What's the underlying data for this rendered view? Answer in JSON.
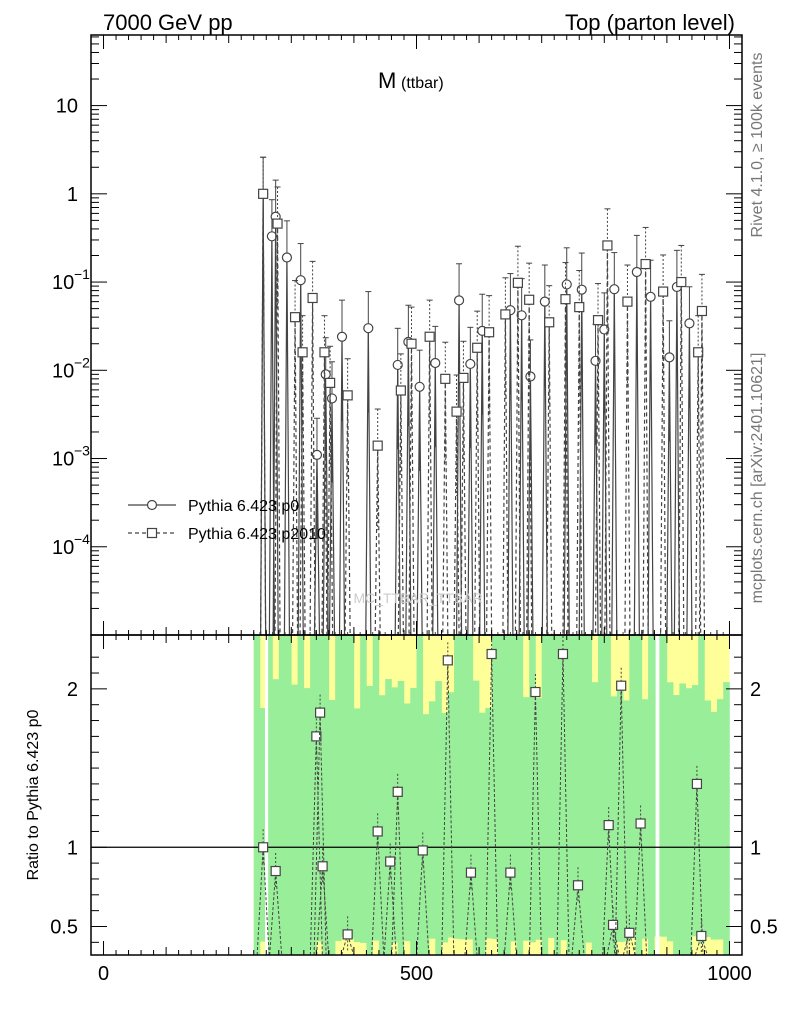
{
  "header": {
    "left": "7000 GeV pp",
    "right": "Top (parton level)"
  },
  "side_labels": {
    "rivet": "Rivet 4.1.0, ≥ 100k events",
    "mcplots": "mcplots.cern.ch [arXiv:2401.10621]"
  },
  "watermark": "MC_TTBAR_TTBAR",
  "chart_data": {
    "type": "line",
    "title_main": "M",
    "title_sub": "(ttbar)",
    "xlabel": "",
    "ylabel_main": "",
    "ylabel_ratio": "Ratio to Pythia 6.423 p0",
    "xlim": [
      -20,
      1020
    ],
    "ylim_main_log10": [
      -5.0,
      1.8
    ],
    "ylim_ratio": [
      0.32,
      2.34
    ],
    "yscale_main": "log",
    "grid": false,
    "legend_position": "lower-left",
    "x_ticks": [
      "0",
      "500",
      "1000"
    ],
    "y_ticks_main": [
      {
        "value": 0.0001,
        "mantissa": "10",
        "exponent": "−4"
      },
      {
        "value": 0.001,
        "mantissa": "10",
        "exponent": "−3"
      },
      {
        "value": 0.01,
        "mantissa": "10",
        "exponent": "−2"
      },
      {
        "value": 0.1,
        "mantissa": "10",
        "exponent": "−1"
      },
      {
        "value": 1,
        "mantissa": "1",
        "exponent": ""
      },
      {
        "value": 10,
        "mantissa": "10",
        "exponent": ""
      }
    ],
    "y_ticks_ratio": [
      "0.5",
      "1",
      "2"
    ],
    "series": [
      {
        "name": "Pythia 6.423 p0",
        "marker": "circle",
        "linestyle": "solid",
        "points": [
          [
            255,
            1.0
          ],
          [
            269,
            0.33
          ],
          [
            275,
            0.55
          ],
          [
            293,
            0.19
          ],
          [
            315,
            0.105
          ],
          [
            341,
            0.0011
          ],
          [
            355,
            0.009
          ],
          [
            365,
            0.0048
          ],
          [
            381,
            0.024
          ],
          [
            423,
            0.03
          ],
          [
            470,
            0.0115
          ],
          [
            487,
            0.021
          ],
          [
            505,
            0.0065
          ],
          [
            530,
            0.0121
          ],
          [
            568,
            0.062
          ],
          [
            586,
            0.0118
          ],
          [
            605,
            0.028
          ],
          [
            650,
            0.048
          ],
          [
            668,
            0.042
          ],
          [
            682,
            0.0085
          ],
          [
            705,
            0.06
          ],
          [
            740,
            0.094
          ],
          [
            764,
            0.082
          ],
          [
            786,
            0.0128
          ],
          [
            800,
            0.029
          ],
          [
            816,
            0.083
          ],
          [
            852,
            0.13
          ],
          [
            874,
            0.068
          ],
          [
            904,
            0.014
          ],
          [
            916,
            0.088
          ],
          [
            936,
            0.034
          ]
        ]
      },
      {
        "name": "Pythia 6.423 p2010",
        "marker": "square",
        "linestyle": "dashed",
        "points": [
          [
            255,
            1.0
          ],
          [
            278,
            0.46
          ],
          [
            306,
            0.04
          ],
          [
            318,
            0.016
          ],
          [
            334,
            0.066
          ],
          [
            353,
            0.016
          ],
          [
            362,
            0.0072
          ],
          [
            390,
            0.0052
          ],
          [
            438,
            0.0014
          ],
          [
            475,
            0.0059
          ],
          [
            492,
            0.02
          ],
          [
            521,
            0.024
          ],
          [
            546,
            0.008
          ],
          [
            564,
            0.0034
          ],
          [
            575,
            0.0082
          ],
          [
            597,
            0.018
          ],
          [
            616,
            0.027
          ],
          [
            642,
            0.043
          ],
          [
            662,
            0.098
          ],
          [
            680,
            0.063
          ],
          [
            712,
            0.035
          ],
          [
            738,
            0.064
          ],
          [
            760,
            0.052
          ],
          [
            790,
            0.037
          ],
          [
            805,
            0.26
          ],
          [
            837,
            0.06
          ],
          [
            866,
            0.16
          ],
          [
            894,
            0.078
          ],
          [
            923,
            0.1
          ],
          [
            950,
            0.016
          ],
          [
            956,
            0.047
          ]
        ]
      }
    ],
    "ratio_points": [
      [
        255,
        1.0
      ],
      [
        275,
        0.85
      ],
      [
        340,
        1.7
      ],
      [
        346,
        1.85
      ],
      [
        350,
        0.88
      ],
      [
        390,
        0.45
      ],
      [
        438,
        1.1
      ],
      [
        458,
        0.91
      ],
      [
        470,
        1.35
      ],
      [
        510,
        0.98
      ],
      [
        550,
        2.18
      ],
      [
        587,
        0.84
      ],
      [
        620,
        2.22
      ],
      [
        650,
        0.84
      ],
      [
        690,
        1.98
      ],
      [
        734,
        2.22
      ],
      [
        758,
        0.76
      ],
      [
        807,
        1.14
      ],
      [
        814,
        0.51
      ],
      [
        827,
        2.02
      ],
      [
        840,
        0.46
      ],
      [
        858,
        1.15
      ],
      [
        948,
        1.4
      ],
      [
        955,
        0.44
      ]
    ]
  }
}
